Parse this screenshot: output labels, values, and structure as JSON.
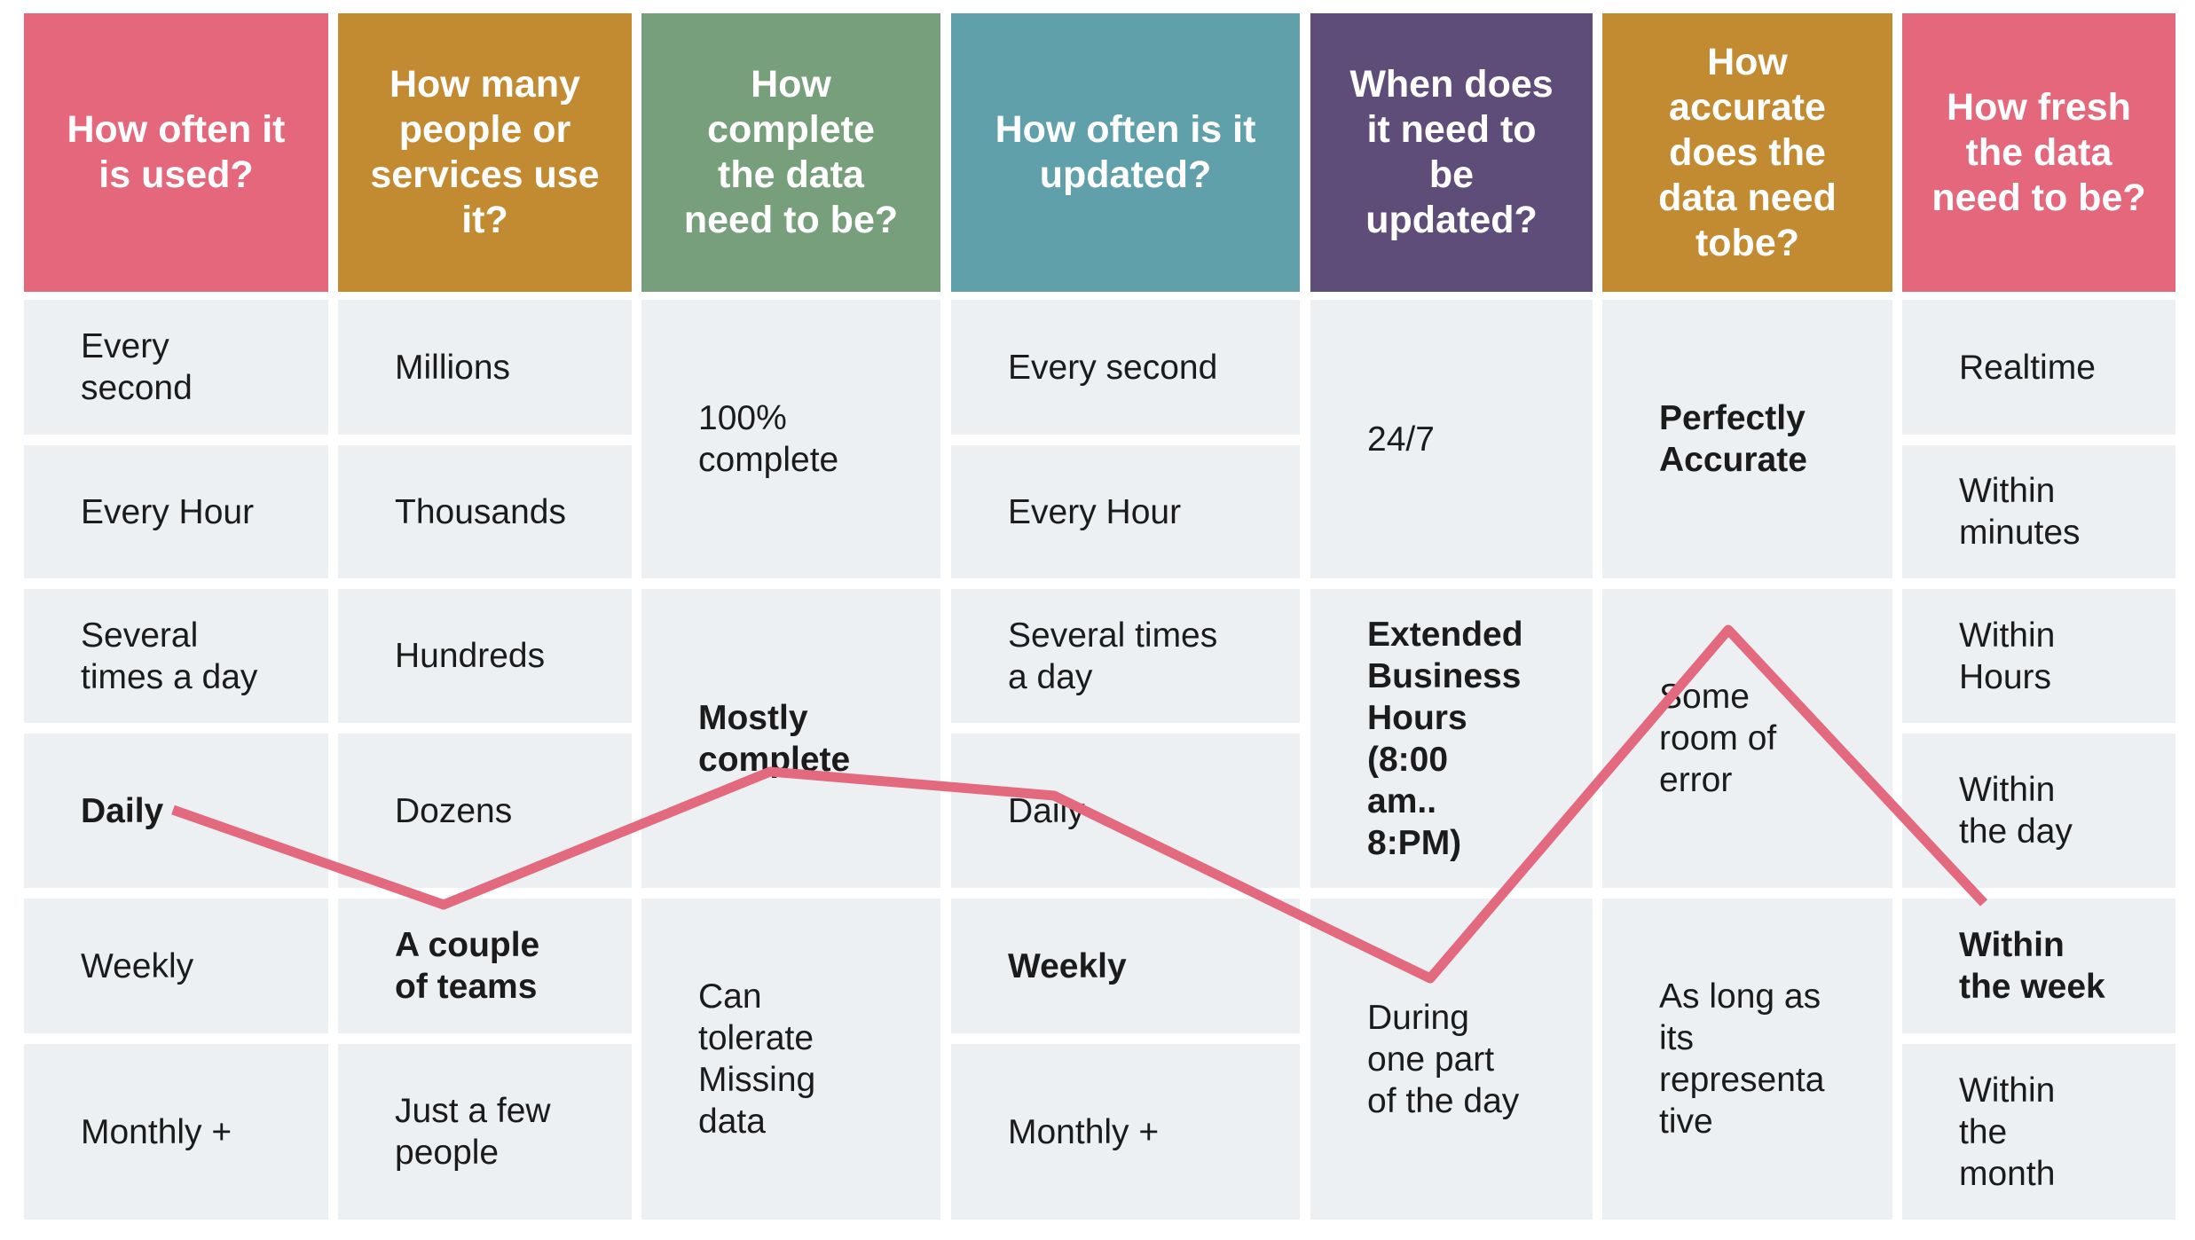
{
  "columns": [
    {
      "header": "How often it\nis used?",
      "color": "#e5677c",
      "cells": [
        {
          "text": "Every\nsecond"
        },
        {
          "text": "Every Hour"
        },
        {
          "text": "Several\ntimes a day"
        },
        {
          "text": "Daily",
          "bold": true
        },
        {
          "text": "Weekly"
        },
        {
          "text": "Monthly +"
        }
      ]
    },
    {
      "header": "How many\npeople or\nservices use\nit?",
      "color": "#c28a31",
      "cells": [
        {
          "text": "Millions"
        },
        {
          "text": "Thousands"
        },
        {
          "text": "Hundreds"
        },
        {
          "text": "Dozens"
        },
        {
          "text": "A couple\nof teams",
          "bold": true
        },
        {
          "text": "Just a few\npeople"
        }
      ]
    },
    {
      "header": "How\ncomplete\nthe data\nneed to be?",
      "color": "#779f7b",
      "cells": [
        {
          "text": "100%\ncomplete"
        },
        {
          "text": "Mostly\ncomplete",
          "bold": true
        },
        {
          "text": "Can\ntolerate\nMissing\ndata"
        }
      ]
    },
    {
      "header": "How often is it\nupdated?",
      "color": "#5fa0ab",
      "cells": [
        {
          "text": "Every second"
        },
        {
          "text": "Every Hour"
        },
        {
          "text": "Several times\na day"
        },
        {
          "text": "Daily"
        },
        {
          "text": "Weekly",
          "bold": true
        },
        {
          "text": "Monthly +"
        }
      ]
    },
    {
      "header": "When does\nit need to\nbe\nupdated?",
      "color": "#5e4d78",
      "cells": [
        {
          "text": "24/7"
        },
        {
          "text": "Extended\nBusiness\nHours\n(8:00\nam..\n8:PM)",
          "bold": true
        },
        {
          "text": "During\none part\nof the day"
        }
      ]
    },
    {
      "header": "How\naccurate\ndoes the\ndata need\ntobe?",
      "color": "#c28a31",
      "cells": [
        {
          "text": "Perfectly\nAccurate",
          "bold": true
        },
        {
          "text": "Some\nroom of\nerror"
        },
        {
          "text": "As long as\nits\nrepresenta\ntive"
        }
      ]
    },
    {
      "header": "How fresh\nthe data\nneed to be?",
      "color": "#e5677c",
      "cells": [
        {
          "text": "Realtime"
        },
        {
          "text": "Within\nminutes"
        },
        {
          "text": "Within\nHours"
        },
        {
          "text": "Within\nthe day"
        },
        {
          "text": "Within\nthe week",
          "bold": true
        },
        {
          "text": "Within\nthe\nmonth"
        }
      ]
    }
  ],
  "profile_line": {
    "color": "#e2697e"
  }
}
